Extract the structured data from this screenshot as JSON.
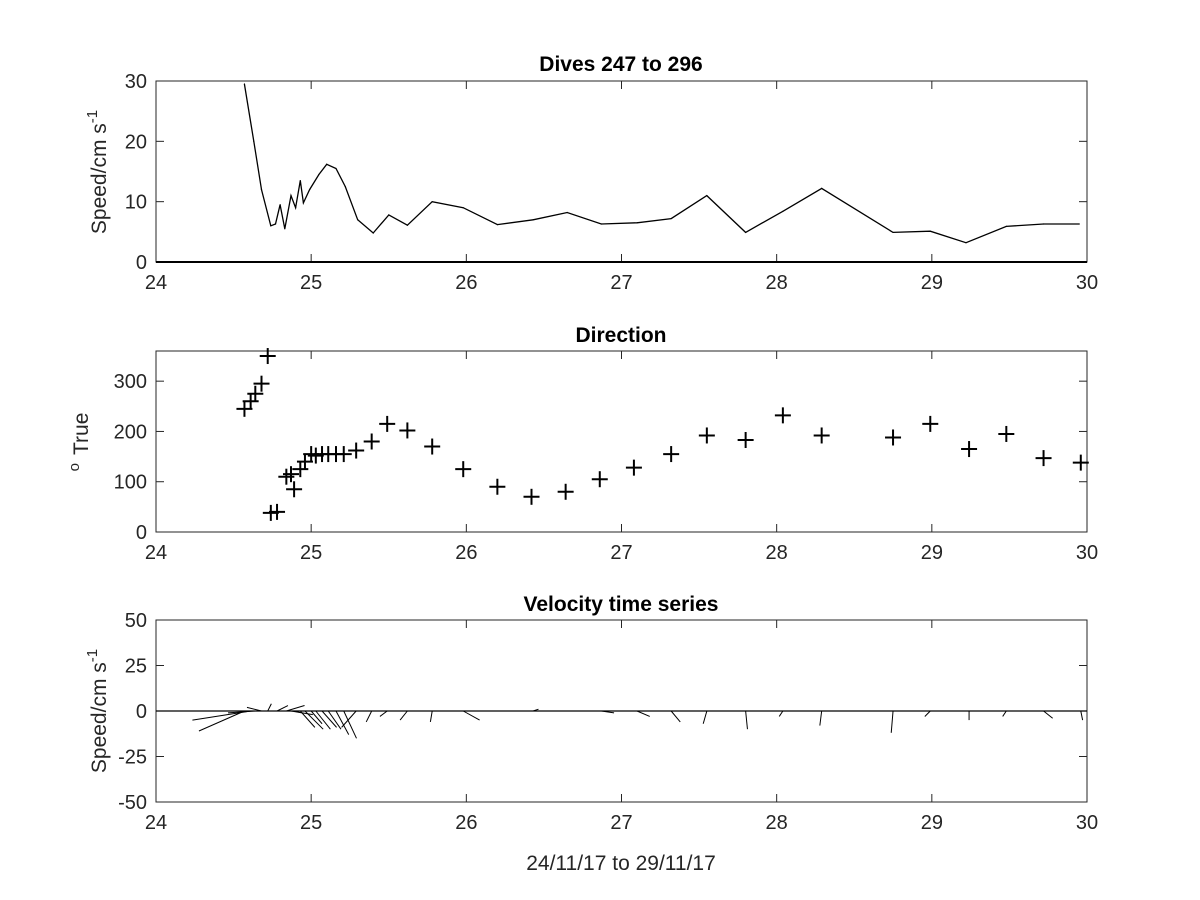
{
  "chart_data": [
    {
      "type": "line",
      "title": "Dives 247 to 296",
      "ylabel": "Speed/cm s",
      "ylabel_sup": "-1",
      "xlim": [
        24,
        30
      ],
      "ylim": [
        0,
        30
      ],
      "xticks": [
        24,
        25,
        26,
        27,
        28,
        29,
        30
      ],
      "yticks": [
        0,
        10,
        20,
        30
      ],
      "grid": false,
      "series": [
        {
          "x": [
            24.57,
            24.63,
            24.68,
            24.74,
            24.77,
            24.8,
            24.83,
            24.87,
            24.9,
            24.93,
            24.95,
            24.99,
            25.05,
            25.1,
            25.16,
            25.22,
            25.3,
            25.4,
            25.5,
            25.62,
            25.78,
            25.98,
            26.2,
            26.43,
            26.65,
            26.87,
            27.1,
            27.32,
            27.55,
            27.8,
            28.04,
            28.29,
            28.75,
            28.99,
            29.22,
            29.48,
            29.72,
            29.95
          ],
          "y": [
            29.5,
            20.0,
            12.0,
            6.0,
            6.3,
            9.5,
            5.5,
            11.0,
            9.0,
            13.5,
            9.8,
            12.0,
            14.5,
            16.2,
            15.5,
            12.5,
            7.0,
            4.8,
            7.8,
            6.1,
            10.0,
            9.0,
            6.2,
            7.0,
            8.2,
            6.3,
            6.5,
            7.2,
            11.0,
            4.9,
            8.4,
            12.2,
            4.9,
            5.1,
            3.2,
            5.9,
            6.3,
            6.3
          ]
        }
      ]
    },
    {
      "type": "scatter",
      "title": "Direction",
      "ylabel": "True",
      "ylabel_sup": "o",
      "xlim": [
        24,
        30
      ],
      "ylim": [
        0,
        360
      ],
      "xticks": [
        24,
        25,
        26,
        27,
        28,
        29,
        30
      ],
      "yticks": [
        0,
        100,
        200,
        300
      ],
      "grid": false,
      "marker": "+",
      "series": [
        {
          "x": [
            24.57,
            24.61,
            24.64,
            24.68,
            24.72,
            24.74,
            24.78,
            24.84,
            24.87,
            24.89,
            24.93,
            24.96,
            25.0,
            25.03,
            25.07,
            25.11,
            25.16,
            25.21,
            25.29,
            25.39,
            25.49,
            25.62,
            25.78,
            25.98,
            26.2,
            26.42,
            26.64,
            26.86,
            27.08,
            27.32,
            27.55,
            27.8,
            28.04,
            28.29,
            28.75,
            28.99,
            29.24,
            29.48,
            29.72,
            29.96
          ],
          "y": [
            245,
            260,
            275,
            295,
            350,
            38,
            40,
            110,
            115,
            85,
            125,
            140,
            155,
            152,
            155,
            155,
            155,
            155,
            162,
            180,
            215,
            202,
            170,
            125,
            90,
            70,
            80,
            105,
            128,
            155,
            192,
            183,
            232,
            192,
            188,
            215,
            165,
            195,
            147,
            138
          ]
        }
      ]
    },
    {
      "type": "quiver",
      "title": "Velocity time series",
      "ylabel": "Speed/cm s",
      "ylabel_sup": "-1",
      "xlabel": "24/11/17 to 29/11/17",
      "xlim": [
        24,
        30
      ],
      "ylim": [
        -50,
        50
      ],
      "xticks": [
        24,
        25,
        26,
        27,
        28,
        29,
        30
      ],
      "yticks": [
        -50,
        -25,
        0,
        25,
        50
      ],
      "grid": false,
      "baseline": 0,
      "x": [
        24.57,
        24.61,
        24.64,
        24.68,
        24.72,
        24.74,
        24.78,
        24.84,
        24.87,
        24.89,
        24.93,
        24.96,
        25.0,
        25.03,
        25.07,
        25.11,
        25.16,
        25.21,
        25.29,
        25.39,
        25.49,
        25.62,
        25.78,
        25.98,
        26.43,
        26.75,
        26.87,
        27.1,
        27.32,
        27.55,
        27.8,
        28.04,
        28.29,
        28.75,
        28.99,
        29.24,
        29.48,
        29.72,
        29.96
      ],
      "u": [
        -25,
        -32,
        -15,
        -8,
        2,
        6,
        6,
        10,
        12,
        4,
        8,
        10,
        6,
        8,
        8,
        7,
        7,
        7,
        -8,
        -3,
        -4,
        -4,
        -1,
        9,
        3,
        2,
        7,
        7,
        5,
        -2,
        1,
        -2,
        -1,
        -1,
        -3,
        0,
        -2,
        5,
        1
      ],
      "v": [
        -11,
        -5,
        -1,
        2,
        4,
        0,
        3,
        3,
        -2,
        -1,
        -9,
        -10,
        -7,
        -10,
        -9,
        -10,
        -13,
        -15,
        -9,
        -6,
        -3,
        -5,
        -6,
        -5,
        1,
        0,
        -1,
        -3,
        -6,
        -7,
        -10,
        -3,
        -8,
        -12,
        -3,
        -5,
        -3,
        -4,
        -5
      ]
    }
  ]
}
